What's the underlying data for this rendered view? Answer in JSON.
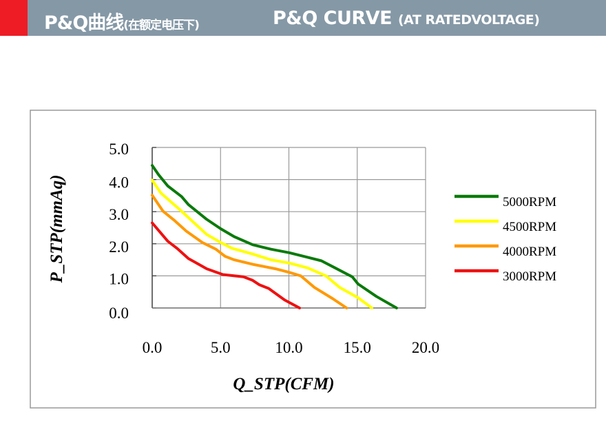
{
  "header": {
    "title_cn": "P&Q曲线",
    "subtitle_cn": "(在额定电压下)",
    "title_en": "P&Q CURVE",
    "subtitle_en": "(AT RATEDVOLTAGE)",
    "accent_color": "#ee1c25",
    "bar_color": "#8598a6"
  },
  "chart_data": {
    "type": "line",
    "title": "",
    "xlabel": "Q_STP(CFM)",
    "ylabel": "P_STP(mmAq)",
    "xlim": [
      0,
      20
    ],
    "ylim": [
      0,
      5
    ],
    "x_ticks": [
      "0.0",
      "5.0",
      "10.0",
      "15.0",
      "20.0"
    ],
    "y_ticks": [
      "0.0",
      "1.0",
      "2.0",
      "3.0",
      "4.0",
      "5.0"
    ],
    "grid": true,
    "legend_position": "right",
    "series": [
      {
        "name": "5000RPM",
        "color": "#0a7a0a",
        "points": [
          [
            0,
            4.44
          ],
          [
            0.47,
            4.15
          ],
          [
            1.14,
            3.8
          ],
          [
            2.15,
            3.47
          ],
          [
            2.65,
            3.22
          ],
          [
            3.99,
            2.76
          ],
          [
            5.0,
            2.47
          ],
          [
            6.0,
            2.22
          ],
          [
            7.35,
            1.97
          ],
          [
            8.69,
            1.83
          ],
          [
            10.03,
            1.72
          ],
          [
            11.37,
            1.58
          ],
          [
            12.38,
            1.47
          ],
          [
            13.38,
            1.25
          ],
          [
            14.64,
            0.97
          ],
          [
            15.06,
            0.75
          ],
          [
            16.4,
            0.36
          ],
          [
            17.88,
            0
          ]
        ]
      },
      {
        "name": "4500RPM",
        "color": "#ffff00",
        "points": [
          [
            0,
            3.98
          ],
          [
            0.64,
            3.58
          ],
          [
            1.98,
            3.08
          ],
          [
            3.99,
            2.29
          ],
          [
            5.0,
            2.04
          ],
          [
            5.83,
            1.86
          ],
          [
            7.35,
            1.68
          ],
          [
            8.69,
            1.5
          ],
          [
            10.03,
            1.4
          ],
          [
            11.37,
            1.25
          ],
          [
            12.71,
            1.0
          ],
          [
            13.72,
            0.64
          ],
          [
            15.06,
            0.32
          ],
          [
            16.07,
            0
          ]
        ]
      },
      {
        "name": "4000RPM",
        "color": "#ff9900",
        "points": [
          [
            0,
            3.51
          ],
          [
            0.8,
            3.01
          ],
          [
            1.64,
            2.72
          ],
          [
            2.48,
            2.4
          ],
          [
            3.66,
            2.04
          ],
          [
            4.66,
            1.83
          ],
          [
            5.33,
            1.61
          ],
          [
            6.0,
            1.5
          ],
          [
            7.35,
            1.36
          ],
          [
            9.02,
            1.22
          ],
          [
            10.03,
            1.11
          ],
          [
            10.87,
            1.0
          ],
          [
            11.87,
            0.64
          ],
          [
            13.21,
            0.29
          ],
          [
            14.22,
            0
          ]
        ]
      },
      {
        "name": "3000RPM",
        "color": "#ee1111",
        "points": [
          [
            0,
            2.65
          ],
          [
            1.14,
            2.08
          ],
          [
            1.81,
            1.86
          ],
          [
            2.65,
            1.54
          ],
          [
            3.99,
            1.22
          ],
          [
            5.17,
            1.04
          ],
          [
            6.68,
            0.97
          ],
          [
            7.35,
            0.86
          ],
          [
            7.85,
            0.72
          ],
          [
            8.52,
            0.61
          ],
          [
            9.69,
            0.25
          ],
          [
            10.78,
            0
          ]
        ]
      }
    ]
  }
}
